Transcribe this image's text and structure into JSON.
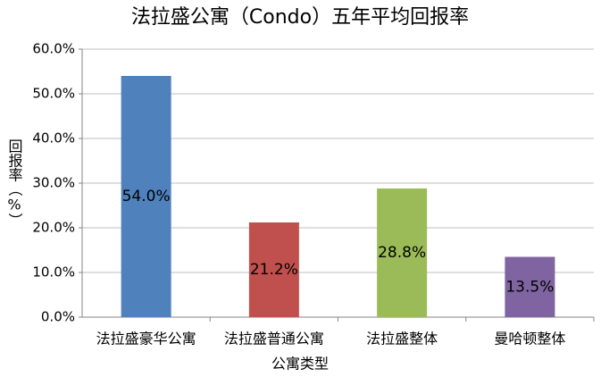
{
  "chart_data": {
    "type": "bar",
    "title": "法拉盛公寓（Condo）五年平均回报率",
    "x_label": "公寓类型",
    "y_label": "回报率（%）",
    "categories": [
      "法拉盛豪华公寓",
      "法拉盛普通公寓",
      "法拉盛整体",
      "曼哈顿整体"
    ],
    "values": [
      54.0,
      21.2,
      28.8,
      13.5
    ],
    "value_labels": [
      "54.0%",
      "21.2%",
      "28.8%",
      "13.5%"
    ],
    "colors": [
      "#4f81bd",
      "#c0504d",
      "#9bbb59",
      "#8064a2"
    ],
    "ylim": [
      0,
      60
    ],
    "yticks": [
      {
        "value": 0,
        "label": "0.0%"
      },
      {
        "value": 10,
        "label": "10.0%"
      },
      {
        "value": 20,
        "label": "20.0%"
      },
      {
        "value": 30,
        "label": "30.0%"
      },
      {
        "value": 40,
        "label": "40.0%"
      },
      {
        "value": 50,
        "label": "50.0%"
      },
      {
        "value": 60,
        "label": "60.0%"
      }
    ],
    "grid": true
  }
}
